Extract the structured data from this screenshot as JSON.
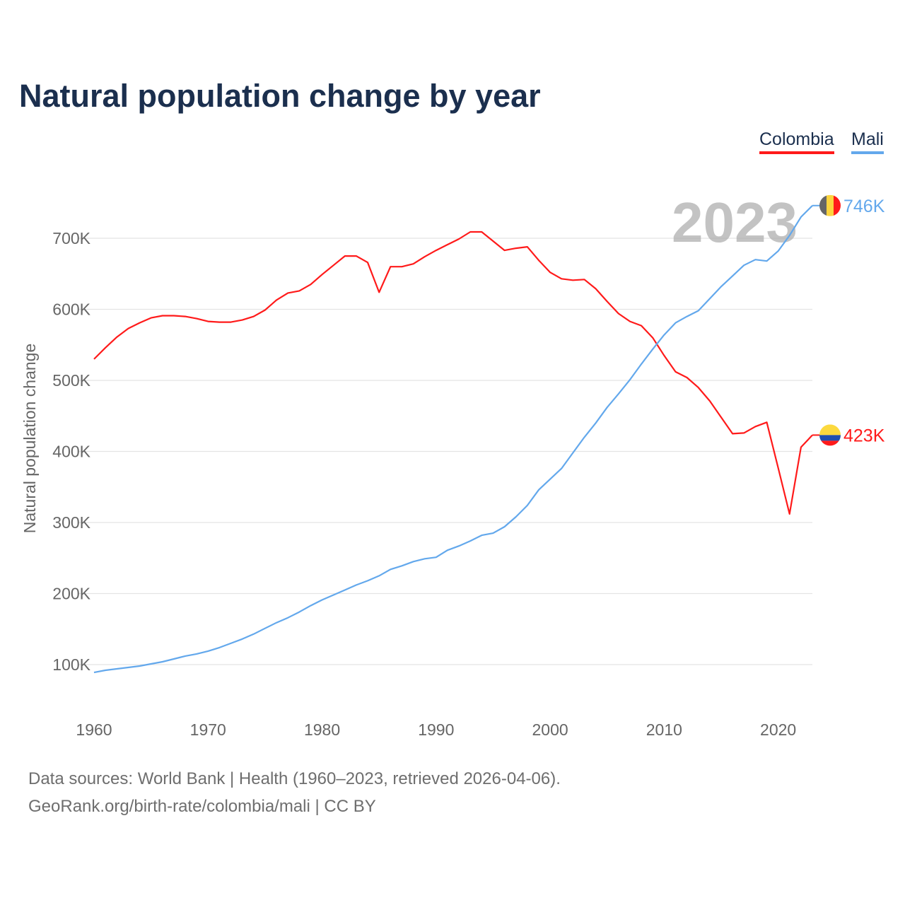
{
  "title": "Natural population change by year",
  "legend": [
    {
      "name": "Colombia",
      "color": "#ff1a1a"
    },
    {
      "name": "Mali",
      "color": "#63a8ec"
    }
  ],
  "year_watermark": "2023",
  "footer": {
    "line1": "Data sources: World Bank | Health (1960–2023, retrieved 2026-04-06).",
    "line2": "GeoRank.org/birth-rate/colombia/mali | CC BY"
  },
  "chart_data": {
    "type": "line",
    "title": "Natural population change by year",
    "xlabel": "",
    "ylabel": "Natural population change",
    "xlim": [
      1960,
      2023
    ],
    "ylim_k": [
      0,
      760
    ],
    "x_ticks": [
      "1960",
      "1970",
      "1980",
      "1990",
      "2000",
      "2010",
      "2020"
    ],
    "y_ticks": [
      {
        "value": 100,
        "label": "100K"
      },
      {
        "value": 200,
        "label": "200K"
      },
      {
        "value": 300,
        "label": "300K"
      },
      {
        "value": 400,
        "label": "400K"
      },
      {
        "value": 500,
        "label": "500K"
      },
      {
        "value": 600,
        "label": "600K"
      },
      {
        "value": 700,
        "label": "700K"
      }
    ],
    "grid": true,
    "legend_position": "top-right",
    "x_start": 1960,
    "series": [
      {
        "name": "Colombia",
        "color": "#ff1a1a",
        "end_label": "423K",
        "flag": "colombia",
        "values_k": [
          530,
          546,
          561,
          573,
          581,
          588,
          591,
          591,
          590,
          587,
          583,
          582,
          582,
          585,
          590,
          599,
          613,
          623,
          626,
          635,
          649,
          662,
          675,
          675,
          666,
          624,
          660,
          660,
          664,
          674,
          683,
          691,
          699,
          709,
          709,
          696,
          683,
          686,
          688,
          669,
          652,
          643,
          641,
          642,
          629,
          611,
          594,
          583,
          577,
          560,
          535,
          512,
          504,
          490,
          471,
          448,
          425,
          426,
          435,
          441,
          377,
          312,
          406,
          423
        ]
      },
      {
        "name": "Mali",
        "color": "#63a8ec",
        "end_label": "746K",
        "flag": "mali",
        "values_k": [
          89,
          92,
          94,
          96,
          98,
          101,
          104,
          108,
          112,
          115,
          119,
          124,
          130,
          136,
          143,
          151,
          159,
          166,
          174,
          183,
          191,
          198,
          205,
          212,
          218,
          225,
          234,
          239,
          245,
          249,
          251,
          261,
          267,
          274,
          282,
          285,
          294,
          308,
          324,
          346,
          361,
          376,
          398,
          420,
          440,
          462,
          481,
          501,
          523,
          544,
          564,
          581,
          590,
          598,
          615,
          632,
          647,
          662,
          670,
          668,
          682,
          704,
          730,
          746
        ]
      }
    ]
  }
}
